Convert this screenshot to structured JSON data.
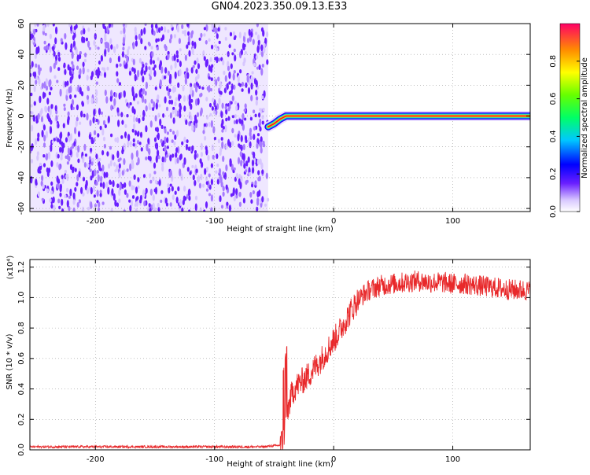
{
  "title": "GN04.2023.350.09.13.E33",
  "colors": {
    "spectrogram_scatter": "#6a1fff",
    "spectrogram_faint": "#d7c6ff",
    "snr_line": "#e8282a"
  },
  "chart_data": [
    {
      "type": "heatmap",
      "title": "GN04.2023.350.09.13.E33",
      "xlabel": "Height of straight line (km)",
      "ylabel": "Frequency (Hz)",
      "xlim": [
        -255,
        165
      ],
      "ylim": [
        -62,
        60
      ],
      "xticks": [
        -200,
        -100,
        0,
        100
      ],
      "yticks": [
        -60,
        -40,
        -20,
        0,
        20,
        40,
        60
      ],
      "grid": true,
      "noise_region_x": [
        -255,
        -55
      ],
      "tone_frequency": 0,
      "tone_track": [
        {
          "x": -55,
          "y": -7
        },
        {
          "x": -50,
          "y": -5
        },
        {
          "x": -45,
          "y": -2
        },
        {
          "x": -40,
          "y": 0
        },
        {
          "x": -30,
          "y": 0
        },
        {
          "x": -20,
          "y": 0
        },
        {
          "x": 0,
          "y": 0
        },
        {
          "x": 100,
          "y": 0
        },
        {
          "x": 165,
          "y": 0
        }
      ],
      "colorbar": {
        "label": "Normalized spectral amplitude",
        "ticks": [
          0.0,
          0.2,
          0.4,
          0.6,
          0.8
        ],
        "range": [
          0,
          1
        ]
      }
    },
    {
      "type": "line",
      "xlabel": "Height of straight line (km)",
      "ylabel": "SNR (10 * v/v)",
      "y_multiplier": "(x10⁴)",
      "xlim": [
        -255,
        165
      ],
      "ylim": [
        0,
        1.25
      ],
      "xticks": [
        -200,
        -100,
        0,
        100
      ],
      "yticks": [
        0.0,
        0.2,
        0.4,
        0.6,
        0.8,
        1.0,
        1.2
      ],
      "grid": true,
      "series": [
        {
          "x": [
            -255,
            -200,
            -150,
            -100,
            -60,
            -45,
            -42,
            -40,
            -38,
            -36,
            -35,
            -33,
            -30,
            -25,
            -20,
            -15,
            -10,
            -5,
            0,
            5,
            10,
            15,
            20,
            25,
            30,
            40,
            50,
            60,
            70,
            80,
            90,
            100,
            110,
            120,
            130,
            140,
            150,
            160,
            165
          ],
          "values": [
            0.02,
            0.02,
            0.02,
            0.02,
            0.02,
            0.03,
            0.08,
            0.2,
            0.28,
            0.34,
            0.37,
            0.4,
            0.43,
            0.46,
            0.5,
            0.55,
            0.6,
            0.66,
            0.72,
            0.78,
            0.85,
            0.92,
            0.98,
            1.02,
            1.05,
            1.08,
            1.09,
            1.1,
            1.11,
            1.1,
            1.1,
            1.09,
            1.09,
            1.08,
            1.07,
            1.06,
            1.05,
            1.05,
            1.04
          ]
        }
      ]
    }
  ]
}
